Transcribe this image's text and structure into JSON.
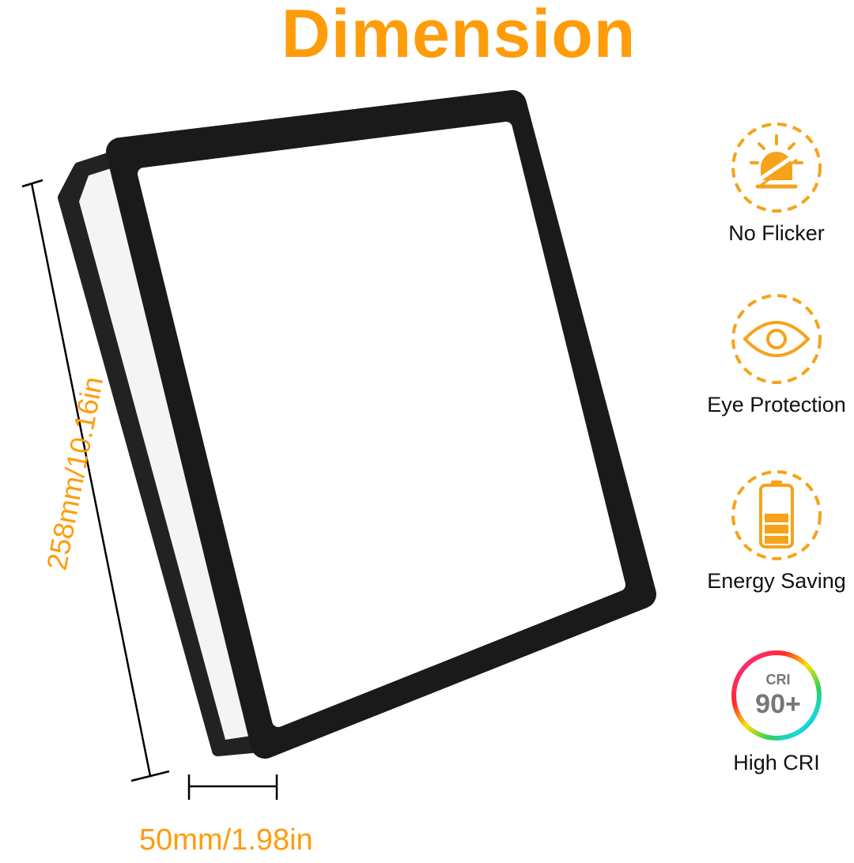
{
  "title": "Dimension",
  "dimensions": {
    "height_label": "258mm/10.16in",
    "depth_label": "50mm/1.98in"
  },
  "features": [
    {
      "label": "No Flicker",
      "icon": "no-flicker-icon"
    },
    {
      "label": "Eye Protection",
      "icon": "eye-icon"
    },
    {
      "label": "Energy Saving",
      "icon": "battery-icon"
    },
    {
      "label": "High CRI",
      "icon": "cri-icon",
      "badge_top": "CRI",
      "badge_value": "90+"
    }
  ],
  "colors": {
    "accent": "#FF9C0A",
    "icon": "#F5A31A",
    "frame": "#1a1a1a"
  }
}
